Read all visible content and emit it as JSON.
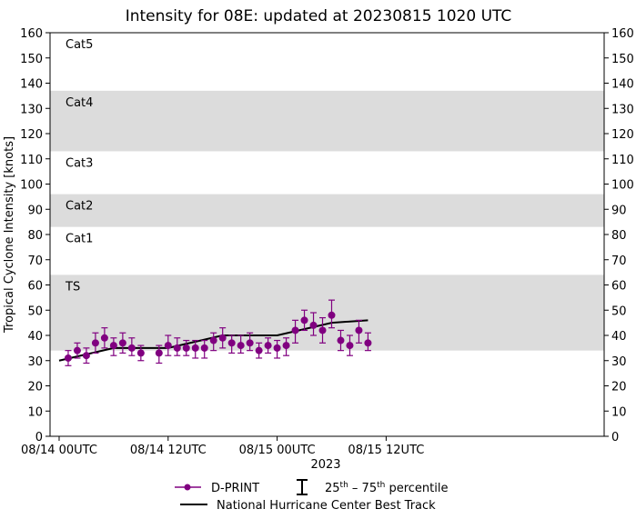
{
  "chart_data": {
    "type": "scatter",
    "title": "Intensity for 08E: updated at 20230815 1020 UTC",
    "xlabel": "2023",
    "ylabel": "Tropical Cyclone Intensity [knots]",
    "xlim_hours": [
      -1,
      60
    ],
    "ylim": [
      0,
      160
    ],
    "yticks": [
      0,
      10,
      20,
      30,
      40,
      50,
      60,
      70,
      80,
      90,
      100,
      110,
      120,
      130,
      140,
      150,
      160
    ],
    "xticks": [
      {
        "hour": 0,
        "label": "08/14 00UTC"
      },
      {
        "hour": 12,
        "label": "08/14 12UTC"
      },
      {
        "hour": 24,
        "label": "08/15 00UTC"
      },
      {
        "hour": 36,
        "label": "08/15 12UTC"
      }
    ],
    "bands": [
      {
        "label": "TS",
        "from": 34,
        "to": 64,
        "shaded": true
      },
      {
        "label": "Cat1",
        "from": 64,
        "to": 83,
        "shaded": false
      },
      {
        "label": "Cat2",
        "from": 83,
        "to": 96,
        "shaded": true
      },
      {
        "label": "Cat3",
        "from": 96,
        "to": 113,
        "shaded": false
      },
      {
        "label": "Cat4",
        "from": 113,
        "to": 137,
        "shaded": true
      },
      {
        "label": "Cat5",
        "from": 137,
        "to": 160,
        "shaded": false
      }
    ],
    "series": [
      {
        "name": "D-PRINT",
        "color": "#800080",
        "points": [
          {
            "x": 1.0,
            "y": 31,
            "lo": 28,
            "hi": 34
          },
          {
            "x": 2.0,
            "y": 34,
            "lo": 31,
            "hi": 37
          },
          {
            "x": 3.0,
            "y": 32,
            "lo": 29,
            "hi": 35
          },
          {
            "x": 4.0,
            "y": 37,
            "lo": 33,
            "hi": 41
          },
          {
            "x": 5.0,
            "y": 39,
            "lo": 35,
            "hi": 43
          },
          {
            "x": 6.0,
            "y": 36,
            "lo": 32,
            "hi": 39
          },
          {
            "x": 7.0,
            "y": 37,
            "lo": 33,
            "hi": 41
          },
          {
            "x": 8.0,
            "y": 35,
            "lo": 32,
            "hi": 39
          },
          {
            "x": 9.0,
            "y": 33,
            "lo": 30,
            "hi": 36
          },
          {
            "x": 11.0,
            "y": 33,
            "lo": 29,
            "hi": 36
          },
          {
            "x": 12.0,
            "y": 36,
            "lo": 32,
            "hi": 40
          },
          {
            "x": 13.0,
            "y": 35,
            "lo": 32,
            "hi": 39
          },
          {
            "x": 14.0,
            "y": 35,
            "lo": 32,
            "hi": 38
          },
          {
            "x": 15.0,
            "y": 35,
            "lo": 31,
            "hi": 38
          },
          {
            "x": 16.0,
            "y": 35,
            "lo": 31,
            "hi": 38
          },
          {
            "x": 17.0,
            "y": 38,
            "lo": 34,
            "hi": 41
          },
          {
            "x": 18.0,
            "y": 39,
            "lo": 35,
            "hi": 43
          },
          {
            "x": 19.0,
            "y": 37,
            "lo": 33,
            "hi": 40
          },
          {
            "x": 20.0,
            "y": 36,
            "lo": 33,
            "hi": 40
          },
          {
            "x": 21.0,
            "y": 37,
            "lo": 34,
            "hi": 41
          },
          {
            "x": 22.0,
            "y": 34,
            "lo": 31,
            "hi": 37
          },
          {
            "x": 23.0,
            "y": 36,
            "lo": 33,
            "hi": 39
          },
          {
            "x": 24.0,
            "y": 35,
            "lo": 31,
            "hi": 38
          },
          {
            "x": 25.0,
            "y": 36,
            "lo": 32,
            "hi": 39
          },
          {
            "x": 26.0,
            "y": 42,
            "lo": 37,
            "hi": 46
          },
          {
            "x": 27.0,
            "y": 46,
            "lo": 42,
            "hi": 50
          },
          {
            "x": 28.0,
            "y": 44,
            "lo": 40,
            "hi": 49
          },
          {
            "x": 29.0,
            "y": 42,
            "lo": 37,
            "hi": 47
          },
          {
            "x": 30.0,
            "y": 48,
            "lo": 43,
            "hi": 54
          },
          {
            "x": 31.0,
            "y": 38,
            "lo": 34,
            "hi": 42
          },
          {
            "x": 32.0,
            "y": 36,
            "lo": 32,
            "hi": 40
          },
          {
            "x": 33.0,
            "y": 42,
            "lo": 37,
            "hi": 46
          },
          {
            "x": 34.0,
            "y": 37,
            "lo": 34,
            "hi": 41
          }
        ]
      },
      {
        "name": "National Hurricane Center Best Track",
        "color": "#000000",
        "x": [
          0,
          6,
          12,
          18,
          24,
          30,
          34
        ],
        "y": [
          30,
          35,
          35,
          40,
          40,
          45,
          46
        ]
      }
    ],
    "legend": {
      "position": "below",
      "dprint_label": "D-PRINT",
      "percentile_label": "25th – 75th percentile",
      "percentile_base_lo": "25",
      "percentile_sup_lo": "th",
      "percentile_dash": " – ",
      "percentile_base_hi": "75",
      "percentile_sup_hi": "th",
      "percentile_tail": " percentile",
      "besttrack_label": "National Hurricane Center Best Track"
    }
  }
}
